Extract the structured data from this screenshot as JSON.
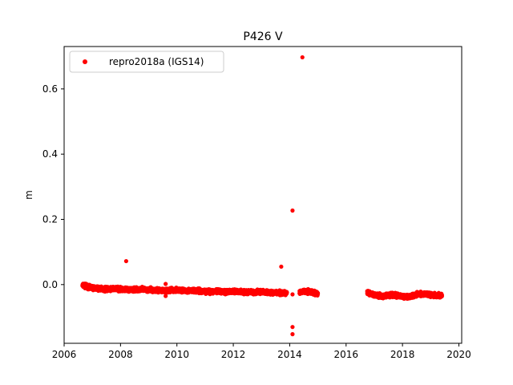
{
  "chart_data": {
    "type": "scatter",
    "title": "P426 V",
    "xlabel": "",
    "ylabel": "m",
    "xlim": [
      2006.0,
      2020.1
    ],
    "ylim": [
      -0.18,
      0.73
    ],
    "xticks": [
      2006,
      2008,
      2010,
      2012,
      2014,
      2016,
      2018,
      2020
    ],
    "yticks": [
      0.0,
      0.2,
      0.4,
      0.6
    ],
    "ytick_labels": [
      "0.0",
      "0.2",
      "0.4",
      "0.6"
    ],
    "grid": false,
    "legend_position": "upper-left",
    "series": [
      {
        "name": "repro2018a (IGS14)",
        "color": "#ff0000",
        "marker": "circle",
        "segments": [
          {
            "x_start": 2006.65,
            "x_end": 2013.9,
            "y_points": [
              [
                2006.65,
                -0.002
              ],
              [
                2006.9,
                -0.008
              ],
              [
                2007.2,
                -0.012
              ],
              [
                2007.5,
                -0.014
              ],
              [
                2007.8,
                -0.012
              ],
              [
                2008.1,
                -0.016
              ],
              [
                2008.4,
                -0.016
              ],
              [
                2008.7,
                -0.014
              ],
              [
                2009.0,
                -0.016
              ],
              [
                2009.3,
                -0.017
              ],
              [
                2009.6,
                -0.018
              ],
              [
                2009.9,
                -0.017
              ],
              [
                2010.2,
                -0.018
              ],
              [
                2010.5,
                -0.019
              ],
              [
                2010.8,
                -0.02
              ],
              [
                2011.1,
                -0.021
              ],
              [
                2011.4,
                -0.021
              ],
              [
                2011.7,
                -0.022
              ],
              [
                2012.0,
                -0.021
              ],
              [
                2012.3,
                -0.022
              ],
              [
                2012.6,
                -0.023
              ],
              [
                2012.9,
                -0.022
              ],
              [
                2013.2,
                -0.024
              ],
              [
                2013.5,
                -0.025
              ],
              [
                2013.9,
                -0.026
              ]
            ]
          },
          {
            "x_start": 2014.35,
            "x_end": 2015.0,
            "y_points": [
              [
                2014.35,
                -0.022
              ],
              [
                2014.6,
                -0.02
              ],
              [
                2014.8,
                -0.024
              ],
              [
                2015.0,
                -0.028
              ]
            ]
          },
          {
            "x_start": 2016.75,
            "x_end": 2019.4,
            "y_points": [
              [
                2016.75,
                -0.025
              ],
              [
                2017.0,
                -0.032
              ],
              [
                2017.3,
                -0.036
              ],
              [
                2017.6,
                -0.03
              ],
              [
                2017.9,
                -0.034
              ],
              [
                2018.2,
                -0.038
              ],
              [
                2018.5,
                -0.03
              ],
              [
                2018.8,
                -0.028
              ],
              [
                2019.1,
                -0.032
              ],
              [
                2019.4,
                -0.034
              ]
            ]
          }
        ],
        "outliers": [
          [
            2008.2,
            0.072
          ],
          [
            2013.7,
            0.055
          ],
          [
            2014.1,
            0.227
          ],
          [
            2014.1,
            -0.13
          ],
          [
            2014.1,
            -0.152
          ],
          [
            2014.1,
            -0.03
          ],
          [
            2014.45,
            0.697
          ],
          [
            2009.6,
            -0.035
          ],
          [
            2009.6,
            0.002
          ]
        ]
      }
    ]
  }
}
